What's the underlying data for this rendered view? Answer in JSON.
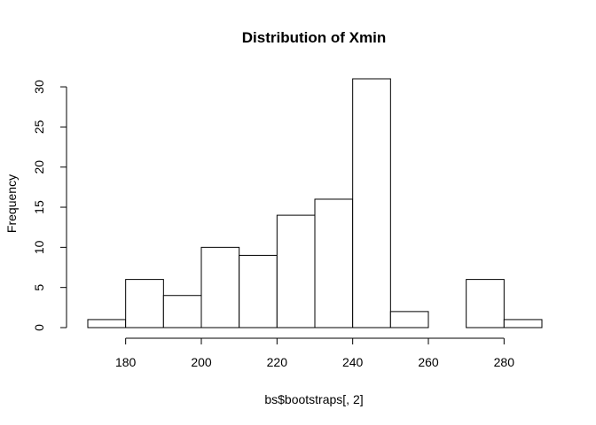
{
  "chart_data": {
    "type": "bar",
    "title": "Distribution of Xmin",
    "xlabel": "bs$bootstraps[, 2]",
    "ylabel": "Frequency",
    "bin_edges": [
      170,
      180,
      190,
      200,
      210,
      220,
      230,
      240,
      250,
      260,
      270,
      280,
      290
    ],
    "values": [
      1,
      6,
      4,
      10,
      9,
      14,
      16,
      31,
      2,
      0,
      6,
      1
    ],
    "xlim": [
      170,
      290
    ],
    "ylim": [
      0,
      31
    ],
    "x_ticks": [
      180,
      200,
      220,
      240,
      260,
      280
    ],
    "y_ticks": [
      0,
      5,
      10,
      15,
      20,
      25,
      30
    ],
    "grid": false,
    "bar_fill": "#ffffff",
    "bar_stroke": "#000000"
  }
}
